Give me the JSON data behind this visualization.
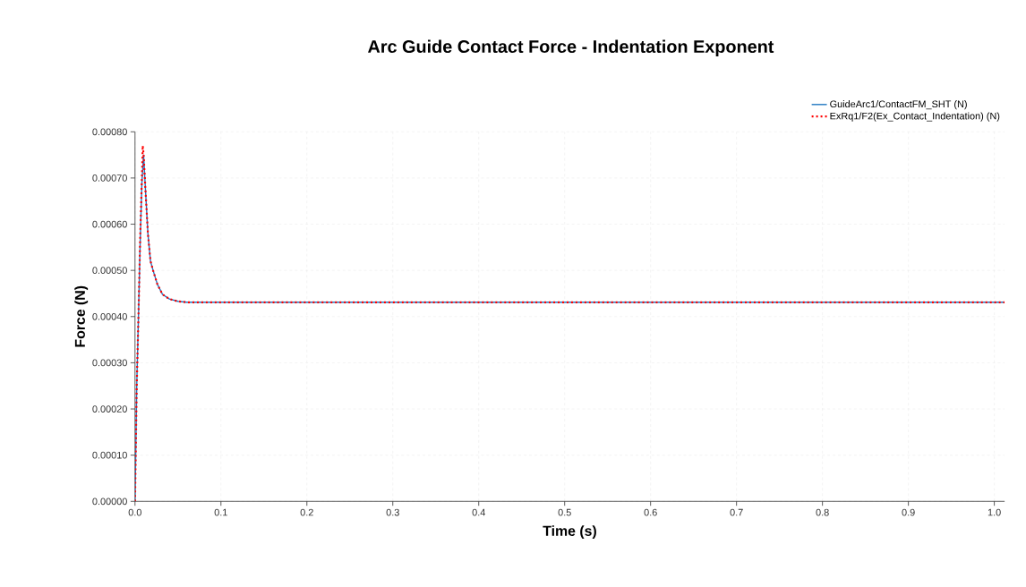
{
  "chart_data": {
    "type": "line",
    "title": "Arc Guide Contact Force - Indentation Exponent",
    "xlabel": "Time (s)",
    "ylabel": "Force (N)",
    "xlim": [
      0,
      1.012
    ],
    "ylim": [
      0,
      0.0008
    ],
    "xticks": [
      {
        "value": 0,
        "label": "0.0"
      },
      {
        "value": 0.1,
        "label": "0.1"
      },
      {
        "value": 0.2,
        "label": "0.2"
      },
      {
        "value": 0.3,
        "label": "0.3"
      },
      {
        "value": 0.4,
        "label": "0.4"
      },
      {
        "value": 0.5,
        "label": "0.5"
      },
      {
        "value": 0.6,
        "label": "0.6"
      },
      {
        "value": 0.7,
        "label": "0.7"
      },
      {
        "value": 0.8,
        "label": "0.8"
      },
      {
        "value": 0.9,
        "label": "0.9"
      },
      {
        "value": 1.0,
        "label": "1.0"
      }
    ],
    "yticks": [
      {
        "value": 0,
        "label": "0.00000"
      },
      {
        "value": 0.0001,
        "label": "0.00010"
      },
      {
        "value": 0.0002,
        "label": "0.00020"
      },
      {
        "value": 0.0003,
        "label": "0.00030"
      },
      {
        "value": 0.0004,
        "label": "0.00040"
      },
      {
        "value": 0.0005,
        "label": "0.00050"
      },
      {
        "value": 0.0006,
        "label": "0.00060"
      },
      {
        "value": 0.0007,
        "label": "0.00070"
      },
      {
        "value": 0.0008,
        "label": "0.00080"
      }
    ],
    "grid": true,
    "legend": "top right",
    "marker": "none",
    "series": [
      {
        "name": "GuideArc1/ContactFM_SHT (N)",
        "color": "#1f77c0",
        "line_style": "solid",
        "x": [
          0,
          0.002,
          0.004,
          0.006,
          0.008,
          0.01,
          0.012,
          0.015,
          0.018,
          0.021,
          0.026,
          0.032,
          0.04,
          0.05,
          0.06,
          1.012
        ],
        "values": [
          0,
          0.00025,
          0.0004,
          0.00056,
          0.00069,
          0.00075,
          0.00068,
          0.00058,
          0.00052,
          0.0005,
          0.00047,
          0.000448,
          0.000438,
          0.000433,
          0.000431,
          0.000431
        ]
      },
      {
        "name": "ExRq1/F2(Ex_Contact_Indentation) (N)",
        "color": "#ff0000",
        "line_style": "dotted",
        "x": [
          0,
          0.002,
          0.004,
          0.006,
          0.008,
          0.009,
          0.01,
          0.012,
          0.015,
          0.018,
          0.021,
          0.026,
          0.032,
          0.04,
          0.05,
          0.06,
          1.012
        ],
        "values": [
          0,
          0.00025,
          0.0004,
          0.00057,
          0.0007,
          0.00077,
          0.00075,
          0.00068,
          0.00058,
          0.00052,
          0.0005,
          0.00047,
          0.000448,
          0.000438,
          0.000433,
          0.000431,
          0.000431
        ]
      }
    ]
  }
}
